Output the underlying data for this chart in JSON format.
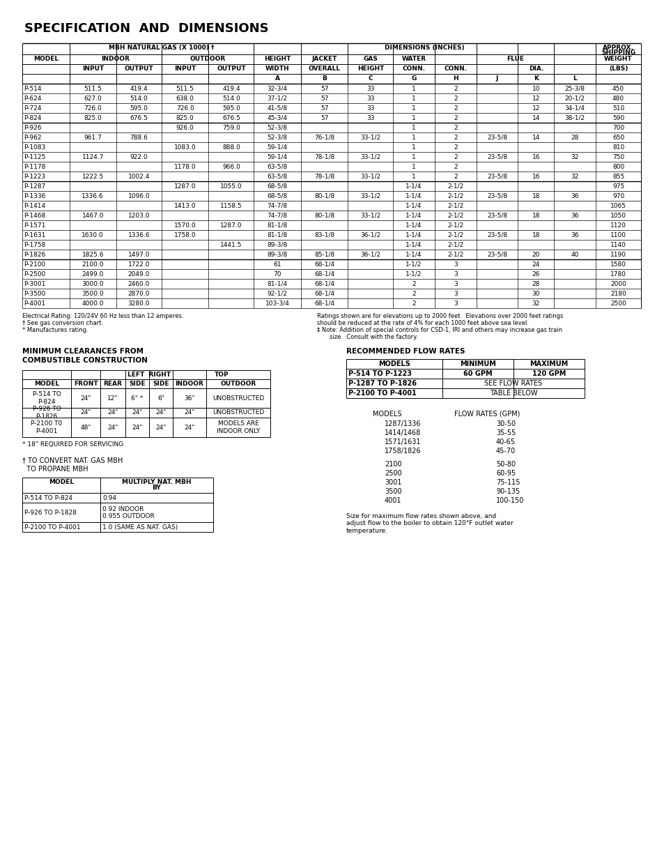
{
  "title": "SPECIFICATION  AND  DIMENSIONS",
  "background_color": "#ffffff",
  "main_table_rows": [
    [
      "P-514",
      "511.5",
      "419.4",
      "511.5",
      "419.4",
      "32-3/4",
      "57",
      "33",
      "1",
      "2",
      "",
      "10",
      "25-3/8",
      "450"
    ],
    [
      "P-624",
      "627.0",
      "514.0",
      "638.0",
      "514.0",
      "37-1/2",
      "57",
      "33",
      "1",
      "2",
      "",
      "12",
      "20-1/2",
      "480"
    ],
    [
      "P-724",
      "726.0",
      "595.0",
      "726.0",
      "595.0",
      "41-5/8",
      "57",
      "33",
      "1",
      "2",
      "",
      "12",
      "34-1/4",
      "510"
    ],
    [
      "P-824",
      "825.0",
      "676.5",
      "825.0",
      "676.5",
      "45-3/4",
      "57",
      "33",
      "1",
      "2",
      "",
      "14",
      "38-1/2",
      "590"
    ],
    [
      "P-926",
      "",
      "",
      "926.0",
      "759.0",
      "52-3/8",
      "",
      "",
      "1",
      "2",
      "",
      "",
      "",
      "700"
    ],
    [
      "P-962",
      "961.7",
      "788.6",
      "",
      "",
      "52-3/8",
      "76-1/8",
      "33-1/2",
      "1",
      "2",
      "23-5/8",
      "14",
      "28",
      "650"
    ],
    [
      "P-1083",
      "",
      "",
      "1083.0",
      "888.0",
      "59-1/4",
      "",
      "",
      "1",
      "2",
      "",
      "",
      "",
      "810"
    ],
    [
      "P-1125",
      "1124.7",
      "922.0",
      "",
      "",
      "59-1/4",
      "78-1/8",
      "33-1/2",
      "1",
      "2",
      "23-5/8",
      "16",
      "32",
      "750"
    ],
    [
      "P-1178",
      "",
      "",
      "1178.0",
      "966.0",
      "63-5/8",
      "",
      "",
      "1",
      "2",
      "",
      "",
      "",
      "800"
    ],
    [
      "P-1223",
      "1222.5",
      "1002.4",
      "",
      "",
      "63-5/8",
      "78-1/8",
      "33-1/2",
      "1",
      "2",
      "23-5/8",
      "16",
      "32",
      "855"
    ],
    [
      "P-1287",
      "",
      "",
      "1287.0",
      "1055.0",
      "68-5/8",
      "",
      "",
      "1-1/4",
      "2-1/2",
      "",
      "",
      "",
      "975"
    ],
    [
      "P-1336",
      "1336.6",
      "1096.0",
      "",
      "",
      "68-5/8",
      "80-1/8",
      "33-1/2",
      "1-1/4",
      "2-1/2",
      "23-5/8",
      "18",
      "36",
      "970"
    ],
    [
      "P-1414",
      "",
      "",
      "1413.0",
      "1158.5",
      "74-7/8",
      "",
      "",
      "1-1/4",
      "2-1/2",
      "",
      "",
      "",
      "1065"
    ],
    [
      "P-1468",
      "1467.0",
      "1203.0",
      "",
      "",
      "74-7/8",
      "80-1/8",
      "33-1/2",
      "1-1/4",
      "2-1/2",
      "23-5/8",
      "18",
      "36",
      "1050"
    ],
    [
      "P-1571",
      "",
      "",
      "1570.0",
      "1287.0",
      "81-1/8",
      "",
      "",
      "1-1/4",
      "2-1/2",
      "",
      "",
      "",
      "1120"
    ],
    [
      "P-1631",
      "1630.0",
      "1336.6",
      "1758.0",
      "",
      "81-1/8",
      "83-1/8",
      "36-1/2",
      "1-1/4",
      "2-1/2",
      "23-5/8",
      "18",
      "36",
      "1100"
    ],
    [
      "P-1758",
      "",
      "",
      "",
      "1441.5",
      "89-3/8",
      "",
      "",
      "1-1/4",
      "2-1/2",
      "",
      "",
      "",
      "1140"
    ],
    [
      "P-1826",
      "1825.6",
      "1497.0",
      "",
      "",
      "89-3/8",
      "85-1/8",
      "36-1/2",
      "1-1/4",
      "2-1/2",
      "23-5/8",
      "20",
      "40",
      "1190"
    ],
    [
      "P-2100",
      "2100.0",
      "1722.0",
      "",
      "",
      "61",
      "68-1/4",
      "",
      "1-1/2",
      "3",
      "",
      "24",
      "",
      "1580"
    ],
    [
      "P-2500",
      "2499.0",
      "2049.0",
      "",
      "",
      "70",
      "68-1/4",
      "",
      "1-1/2",
      "3",
      "",
      "26",
      "",
      "1780"
    ],
    [
      "P-3001",
      "3000.0",
      "2460.0",
      "",
      "",
      "81-1/4",
      "68-1/4",
      "",
      "2",
      "3",
      "",
      "28",
      "",
      "2000"
    ],
    [
      "P-3500",
      "3500.0",
      "2870.0",
      "",
      "",
      "92-1/2",
      "68-1/4",
      "",
      "2",
      "3",
      "",
      "30",
      "",
      "2180"
    ],
    [
      "P-4001",
      "4000.0",
      "3280.0",
      "",
      "",
      "103-3/4",
      "68-1/4",
      "",
      "2",
      "3",
      "",
      "32",
      "",
      "2500"
    ]
  ],
  "group_thick_after": [
    3,
    9,
    17
  ],
  "footnotes_left": [
    "Electrical Rating: 120/24V 60 Hz less than 12 amperes.",
    "† See gas conversion chart.",
    "* Manufactures rating."
  ],
  "footnotes_right": [
    "Ratings shown are for elevations up to 2000 feet.  Elevations over 2000 feet ratings",
    "should be reduced at the rate of 4% for each 1000 feet above sea level.",
    "‡ Note: Addition of special controls for CSD-1, IRI and others may increase gas train",
    "size.  Consult with the factory."
  ],
  "clearances_rows": [
    [
      "P-514 TO\nP-824",
      "24\"",
      "12\"",
      "6\" *",
      "6\"",
      "36\"",
      "UNOBSTRUCTED"
    ],
    [
      "P-926 TO\nP-1826",
      "24\"",
      "24\"",
      "24\"",
      "24\"",
      "24\"",
      "UNOBSTRUCTED"
    ],
    [
      "P-2100 T0\nP-4001",
      "48\"",
      "24\"",
      "24\"",
      "24\"",
      "24\"",
      "MODELS ARE\nINDOOR ONLY"
    ]
  ],
  "propane_rows": [
    [
      "P-514 TO P-824",
      "0.94"
    ],
    [
      "P-926 TO P-1828",
      "0.92 INDOOR\n0.955 OUTDOOR"
    ],
    [
      "P-2100 TO P-4001",
      "1.0 (SAME AS NAT. GAS)"
    ]
  ],
  "flow_rows": [
    [
      "P-514 TO P-1223",
      "60 GPM",
      "120 GPM"
    ],
    [
      "P-1287 TO P-1826",
      "SEE FLOW RATES",
      ""
    ],
    [
      "P-2100 TO P-4001",
      "TABLE BELOW",
      ""
    ]
  ],
  "flow_detail_rows": [
    [
      "1287/1336",
      "30-50"
    ],
    [
      "1414/1468",
      "35-55"
    ],
    [
      "1571/1631",
      "40-65"
    ],
    [
      "1758/1826",
      "45-70"
    ],
    [
      "",
      ""
    ],
    [
      "2100",
      "50-80"
    ],
    [
      "2500",
      "60-95"
    ],
    [
      "3001",
      "75-115"
    ],
    [
      "3500",
      "90-135"
    ],
    [
      "4001",
      "100-150"
    ]
  ],
  "flow_note": "Size for maximum flow rates shown above, and\nadjust flow to the boiler to obtain 120°F outlet water\ntemperature."
}
